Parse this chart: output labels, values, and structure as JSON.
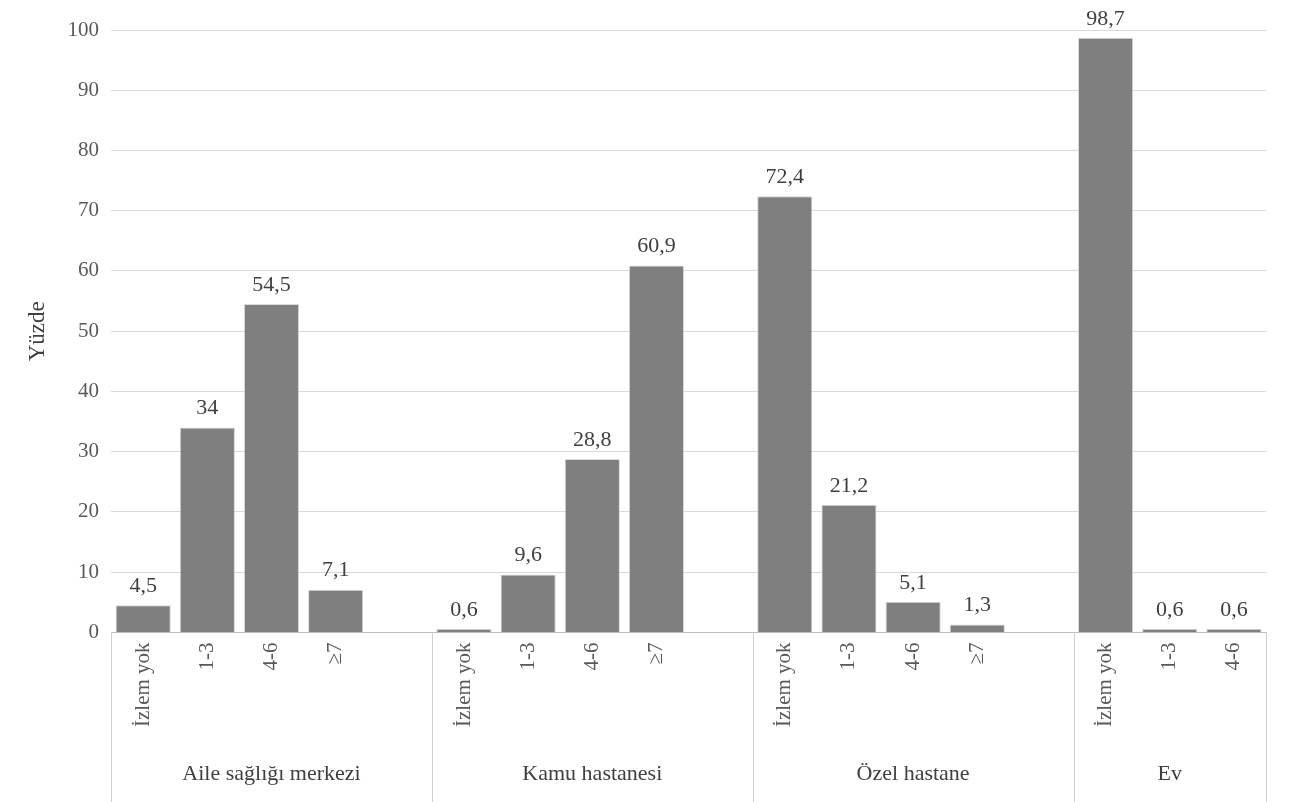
{
  "chart_data": {
    "type": "bar",
    "ylabel": "Yüzde",
    "categories": [
      "İzlem yok",
      "1-3",
      "4-6",
      "≥7",
      null,
      "İzlem yok",
      "1-3",
      "4-6",
      "≥7",
      null,
      "İzlem yok",
      "1-3",
      "4-6",
      "≥7",
      null,
      "İzlem yok",
      "1-3",
      "4-6"
    ],
    "values": [
      4.5,
      34,
      54.5,
      7.1,
      null,
      0.6,
      9.6,
      28.8,
      60.9,
      null,
      72.4,
      21.2,
      5.1,
      1.3,
      null,
      98.7,
      0.6,
      0.6
    ],
    "value_labels": [
      "4,5",
      "34",
      "54,5",
      "7,1",
      null,
      "0,6",
      "9,6",
      "28,8",
      "60,9",
      null,
      "72,4",
      "21,2",
      "5,1",
      "1,3",
      null,
      "98,7",
      "0,6",
      "0,6"
    ],
    "color": "#7f7f7f",
    "annotations": [
      "Aile sağlığı merkezi",
      "Kamu hastanesi",
      "Özel hastane",
      "Ev"
    ],
    "ylim": [
      0,
      100
    ],
    "yticks": [
      0,
      10,
      20,
      30,
      40,
      50,
      60,
      70,
      80,
      90,
      100
    ],
    "grid": "y"
  }
}
